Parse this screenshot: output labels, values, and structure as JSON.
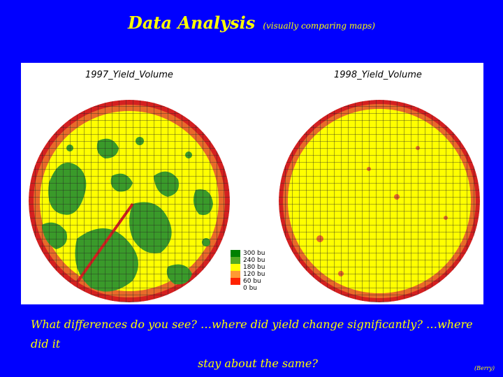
{
  "title": {
    "main": "Data Analysis",
    "subtitle": "(visually comparing maps)"
  },
  "maps": [
    {
      "title": "1997_Yield_Volume"
    },
    {
      "title": "1998_Yield_Volume"
    }
  ],
  "legend": {
    "items": [
      {
        "label": "300 bu",
        "color": "#008000"
      },
      {
        "label": "240 bu",
        "color": "#55aa22"
      },
      {
        "label": "180 bu",
        "color": "#ffff00"
      },
      {
        "label": "120 bu",
        "color": "#ff9933"
      },
      {
        "label": "60 bu",
        "color": "#ff2200"
      },
      {
        "label": "0 bu",
        "color": "#ffffff"
      }
    ]
  },
  "question": {
    "line1": "What differences do you see?    …where did yield change significantly?   …where did it",
    "line2": "stay about the same?"
  },
  "credit": "(Berry)",
  "colors": {
    "background": "#0000ff",
    "text": "#ffff00",
    "yellow_zone": "#ffff00",
    "green_zone": "#3a9a2a",
    "edge_orange": "#e86a2a",
    "edge_red": "#d42020"
  }
}
